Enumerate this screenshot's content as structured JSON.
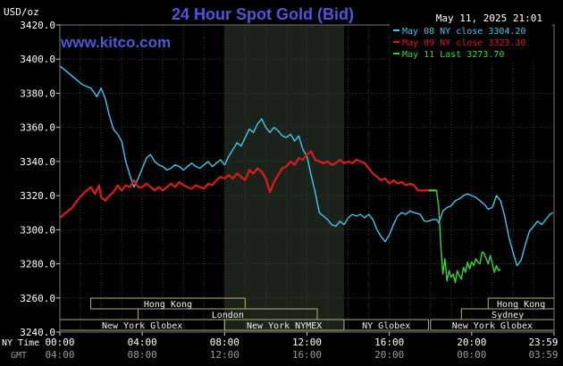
{
  "chart_data": {
    "type": "line",
    "title": "24 Hour Spot Gold (Bid)",
    "ylabel": "USD/oz",
    "watermark": "www.kitco.com",
    "timestamp": "May 11, 2025 21:01",
    "ylim": [
      3240,
      3420
    ],
    "xlim": [
      0,
      24
    ],
    "y_ticks": [
      "3420.0",
      "3400.0",
      "3380.0",
      "3360.0",
      "3340.0",
      "3320.0",
      "3300.0",
      "3280.0",
      "3260.0",
      "3240.0"
    ],
    "x_ticks_ny": [
      "00:00",
      "04:00",
      "08:00",
      "12:00",
      "16:00",
      "20:00",
      "23:59"
    ],
    "x_ticks_gmt": [
      "04:00",
      "08:00",
      "12:00",
      "16:00",
      "20:00",
      "00:00",
      "03:59"
    ],
    "x_row_label_ny": "NY Time",
    "x_row_label_gmt": "GMT",
    "grid": true,
    "legend_position": "top-right",
    "colors": {
      "background": "#000000",
      "grid": "#3a3a3a",
      "text": "#ffffff",
      "title": "#4f56d8",
      "watermark": "#4f56d8",
      "session_shade": "#1a2219",
      "session_label_text": "#f0f0f0",
      "session_border": "#b9aa73"
    },
    "series": [
      {
        "name": "May 08 NY close",
        "value": "3304.20",
        "color": "#3ec7ef",
        "points": [
          [
            0,
            3396
          ],
          [
            0.3,
            3393
          ],
          [
            0.7,
            3389
          ],
          [
            1.1,
            3385
          ],
          [
            1.5,
            3383
          ],
          [
            1.8,
            3378
          ],
          [
            2.0,
            3383
          ],
          [
            2.2,
            3377
          ],
          [
            2.4,
            3367
          ],
          [
            2.6,
            3359
          ],
          [
            2.8,
            3356
          ],
          [
            3.0,
            3352
          ],
          [
            3.2,
            3340
          ],
          [
            3.4,
            3332
          ],
          [
            3.6,
            3325
          ],
          [
            3.8,
            3330
          ],
          [
            4.0,
            3336
          ],
          [
            4.2,
            3342
          ],
          [
            4.4,
            3344
          ],
          [
            4.6,
            3340
          ],
          [
            4.8,
            3338
          ],
          [
            5.0,
            3337
          ],
          [
            5.2,
            3335
          ],
          [
            5.4,
            3336
          ],
          [
            5.6,
            3338
          ],
          [
            5.8,
            3337
          ],
          [
            6.0,
            3335
          ],
          [
            6.2,
            3337
          ],
          [
            6.4,
            3339
          ],
          [
            6.6,
            3337
          ],
          [
            6.8,
            3336
          ],
          [
            7.0,
            3338
          ],
          [
            7.2,
            3340
          ],
          [
            7.4,
            3337
          ],
          [
            7.6,
            3339
          ],
          [
            7.8,
            3341
          ],
          [
            8.0,
            3338
          ],
          [
            8.2,
            3343
          ],
          [
            8.4,
            3347
          ],
          [
            8.6,
            3351
          ],
          [
            8.8,
            3349
          ],
          [
            9.0,
            3354
          ],
          [
            9.2,
            3359
          ],
          [
            9.4,
            3357
          ],
          [
            9.6,
            3362
          ],
          [
            9.8,
            3365
          ],
          [
            10.0,
            3360
          ],
          [
            10.2,
            3357
          ],
          [
            10.4,
            3360
          ],
          [
            10.6,
            3358
          ],
          [
            10.8,
            3355
          ],
          [
            11.0,
            3354
          ],
          [
            11.2,
            3356
          ],
          [
            11.4,
            3352
          ],
          [
            11.6,
            3355
          ],
          [
            11.8,
            3347
          ],
          [
            12.0,
            3343
          ],
          [
            12.2,
            3332
          ],
          [
            12.4,
            3322
          ],
          [
            12.6,
            3310
          ],
          [
            12.8,
            3308
          ],
          [
            13.0,
            3306
          ],
          [
            13.2,
            3303
          ],
          [
            13.4,
            3302
          ],
          [
            13.6,
            3305
          ],
          [
            13.8,
            3303
          ],
          [
            14.0,
            3307
          ],
          [
            14.2,
            3309
          ],
          [
            14.4,
            3308
          ],
          [
            14.6,
            3309
          ],
          [
            14.8,
            3307
          ],
          [
            15.0,
            3309
          ],
          [
            15.2,
            3306
          ],
          [
            15.4,
            3300
          ],
          [
            15.6,
            3296
          ],
          [
            15.8,
            3293
          ],
          [
            16.0,
            3297
          ],
          [
            16.2,
            3303
          ],
          [
            16.4,
            3308
          ],
          [
            16.6,
            3310
          ],
          [
            16.8,
            3309
          ],
          [
            17.0,
            3311
          ],
          [
            17.2,
            3310
          ],
          [
            17.5,
            3309
          ],
          [
            17.7,
            3305
          ],
          [
            17.9,
            3305
          ],
          [
            18.1,
            3306
          ],
          [
            18.3,
            3306
          ],
          [
            18.4,
            3304
          ],
          [
            18.6,
            3311
          ],
          [
            18.8,
            3313
          ],
          [
            19.0,
            3314
          ],
          [
            19.2,
            3317
          ],
          [
            19.4,
            3318
          ],
          [
            19.6,
            3320
          ],
          [
            19.8,
            3321
          ],
          [
            20.0,
            3320
          ],
          [
            20.2,
            3319
          ],
          [
            20.4,
            3317
          ],
          [
            20.6,
            3315
          ],
          [
            20.8,
            3312
          ],
          [
            21.0,
            3313
          ],
          [
            21.2,
            3320
          ],
          [
            21.4,
            3317
          ],
          [
            21.6,
            3308
          ],
          [
            21.8,
            3296
          ],
          [
            22.0,
            3287
          ],
          [
            22.2,
            3279
          ],
          [
            22.4,
            3282
          ],
          [
            22.6,
            3291
          ],
          [
            22.8,
            3299
          ],
          [
            23.0,
            3302
          ],
          [
            23.2,
            3305
          ],
          [
            23.4,
            3303
          ],
          [
            23.6,
            3306
          ],
          [
            23.8,
            3309
          ],
          [
            23.95,
            3310
          ]
        ]
      },
      {
        "name": "May 09 NY close",
        "value": "3323.30",
        "color": "#dd1b1b",
        "points": [
          [
            0,
            3307
          ],
          [
            0.3,
            3310
          ],
          [
            0.6,
            3313
          ],
          [
            0.9,
            3318
          ],
          [
            1.2,
            3322
          ],
          [
            1.5,
            3325
          ],
          [
            1.7,
            3321
          ],
          [
            1.9,
            3326
          ],
          [
            2.0,
            3319
          ],
          [
            2.2,
            3317
          ],
          [
            2.4,
            3320
          ],
          [
            2.6,
            3322
          ],
          [
            2.8,
            3326
          ],
          [
            3.0,
            3323
          ],
          [
            3.2,
            3326
          ],
          [
            3.4,
            3325
          ],
          [
            3.6,
            3329
          ],
          [
            3.8,
            3325
          ],
          [
            4.0,
            3325
          ],
          [
            4.2,
            3327
          ],
          [
            4.4,
            3325
          ],
          [
            4.6,
            3323
          ],
          [
            4.8,
            3325
          ],
          [
            5.0,
            3323
          ],
          [
            5.2,
            3325
          ],
          [
            5.4,
            3327
          ],
          [
            5.6,
            3325
          ],
          [
            5.8,
            3328
          ],
          [
            6.0,
            3326
          ],
          [
            6.2,
            3325
          ],
          [
            6.4,
            3324
          ],
          [
            6.6,
            3326
          ],
          [
            6.8,
            3325
          ],
          [
            7.0,
            3324
          ],
          [
            7.2,
            3327
          ],
          [
            7.4,
            3326
          ],
          [
            7.6,
            3329
          ],
          [
            7.8,
            3331
          ],
          [
            8.0,
            3330
          ],
          [
            8.2,
            3332
          ],
          [
            8.4,
            3330
          ],
          [
            8.6,
            3333
          ],
          [
            8.8,
            3331
          ],
          [
            9.0,
            3329
          ],
          [
            9.2,
            3335
          ],
          [
            9.4,
            3333
          ],
          [
            9.6,
            3336
          ],
          [
            9.8,
            3334
          ],
          [
            10.0,
            3330
          ],
          [
            10.2,
            3322
          ],
          [
            10.4,
            3328
          ],
          [
            10.6,
            3332
          ],
          [
            10.8,
            3336
          ],
          [
            11.0,
            3337
          ],
          [
            11.2,
            3340
          ],
          [
            11.4,
            3338
          ],
          [
            11.6,
            3342
          ],
          [
            11.8,
            3341
          ],
          [
            12.0,
            3344
          ],
          [
            12.2,
            3346
          ],
          [
            12.4,
            3341
          ],
          [
            12.6,
            3340
          ],
          [
            12.8,
            3339
          ],
          [
            13.0,
            3340
          ],
          [
            13.2,
            3338
          ],
          [
            13.4,
            3339
          ],
          [
            13.6,
            3341
          ],
          [
            13.8,
            3339
          ],
          [
            14.0,
            3340
          ],
          [
            14.2,
            3339
          ],
          [
            14.4,
            3341
          ],
          [
            14.6,
            3340
          ],
          [
            14.8,
            3339
          ],
          [
            15.0,
            3336
          ],
          [
            15.2,
            3333
          ],
          [
            15.4,
            3331
          ],
          [
            15.6,
            3329
          ],
          [
            15.8,
            3330
          ],
          [
            16.0,
            3327
          ],
          [
            16.2,
            3329
          ],
          [
            16.4,
            3327
          ],
          [
            16.6,
            3328
          ],
          [
            16.8,
            3326
          ],
          [
            17.0,
            3327
          ],
          [
            17.2,
            3326
          ],
          [
            17.4,
            3323
          ],
          [
            17.6,
            3323
          ],
          [
            17.9,
            3323
          ],
          [
            18.1,
            3323
          ],
          [
            18.3,
            3323
          ]
        ]
      },
      {
        "name": "May 11 Last",
        "value": "3273.70",
        "color": "#38d53a",
        "points": [
          [
            18.3,
            3323
          ],
          [
            18.3,
            3322
          ],
          [
            18.4,
            3313
          ],
          [
            18.5,
            3290
          ],
          [
            18.6,
            3274
          ],
          [
            18.7,
            3283
          ],
          [
            18.8,
            3270
          ],
          [
            18.9,
            3276
          ],
          [
            19.0,
            3272
          ],
          [
            19.1,
            3274
          ],
          [
            19.2,
            3269
          ],
          [
            19.3,
            3276
          ],
          [
            19.4,
            3273
          ],
          [
            19.5,
            3271
          ],
          [
            19.6,
            3278
          ],
          [
            19.7,
            3275
          ],
          [
            19.8,
            3281
          ],
          [
            19.9,
            3277
          ],
          [
            20.0,
            3281
          ],
          [
            20.1,
            3279
          ],
          [
            20.2,
            3283
          ],
          [
            20.3,
            3281
          ],
          [
            20.4,
            3280
          ],
          [
            20.5,
            3287
          ],
          [
            20.6,
            3286
          ],
          [
            20.7,
            3283
          ],
          [
            20.8,
            3280
          ],
          [
            20.9,
            3285
          ],
          [
            21.0,
            3280
          ],
          [
            21.1,
            3275
          ],
          [
            21.2,
            3279
          ],
          [
            21.3,
            3276
          ],
          [
            21.4,
            3277
          ]
        ]
      }
    ],
    "sessions": [
      {
        "label": "Hong Kong",
        "row": 0,
        "start": 1.5,
        "end": 9.0
      },
      {
        "label": "Hong Kong",
        "row": 0,
        "start": 20.8,
        "end": 24.0
      },
      {
        "label": "London",
        "row": 1,
        "start": 3.8,
        "end": 12.5
      },
      {
        "label": "Sydney",
        "row": 1,
        "start": 19.5,
        "end": 24.0
      },
      {
        "label": "New York Globex",
        "row": 2,
        "start": 0.0,
        "end": 8.0
      },
      {
        "label": "New York NYMEX",
        "row": 2,
        "start": 8.0,
        "end": 13.8
      },
      {
        "label": "NY Globex",
        "row": 2,
        "start": 13.8,
        "end": 17.9
      },
      {
        "label": "New York Globex",
        "row": 2,
        "start": 18.0,
        "end": 24.0
      }
    ],
    "shaded_session": {
      "start": 8.0,
      "end": 13.8
    },
    "current_close_marker": {
      "start": 17.9,
      "end": 18.3,
      "value": 3323
    }
  }
}
